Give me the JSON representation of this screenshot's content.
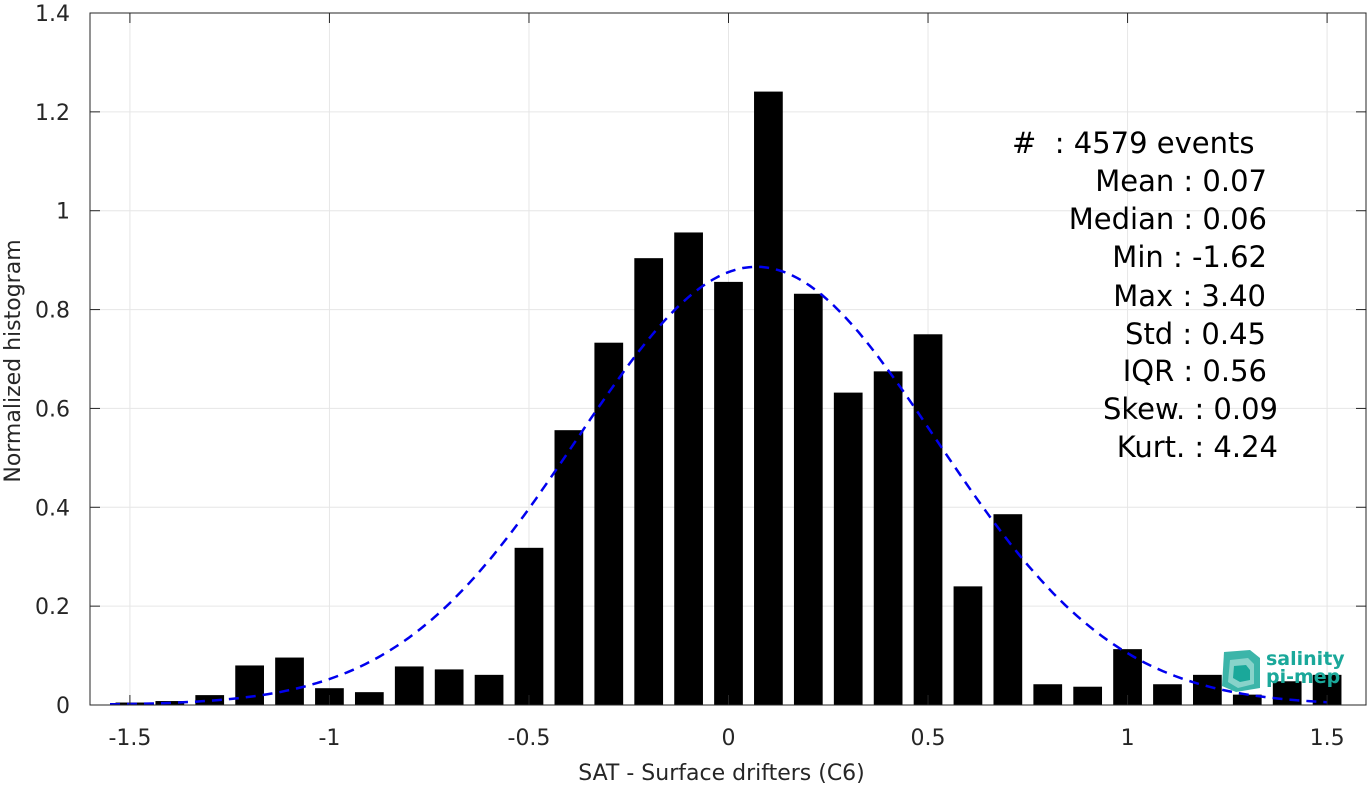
{
  "chart_data": {
    "type": "bar",
    "xlabel": "SAT - Surface drifters (C6)",
    "ylabel": "Normalized histogram",
    "xlim": [
      -1.6,
      1.6
    ],
    "ylim": [
      0,
      1.4
    ],
    "xticks": [
      "-1.5",
      "-1",
      "-0.5",
      "0",
      "0.5",
      "1",
      "1.5"
    ],
    "xtick_values": [
      -1.5,
      -1,
      -0.5,
      0,
      0.5,
      1,
      1.5
    ],
    "yticks": [
      "0",
      "0.2",
      "0.4",
      "0.6",
      "0.8",
      "1",
      "1.2",
      "1.4"
    ],
    "ytick_values": [
      0,
      0.2,
      0.4,
      0.6,
      0.8,
      1,
      1.2,
      1.4
    ],
    "grid": true,
    "bar_color": "#000000",
    "bin_width": 0.1,
    "bars": {
      "x": [
        -1.5,
        -1.4,
        -1.3,
        -1.2,
        -1.1,
        -1.0,
        -0.9,
        -0.8,
        -0.7,
        -0.6,
        -0.5,
        -0.4,
        -0.3,
        -0.2,
        -0.1,
        0.0,
        0.1,
        0.2,
        0.3,
        0.4,
        0.5,
        0.6,
        0.7,
        0.8,
        0.9,
        1.0,
        1.1,
        1.2,
        1.3,
        1.4,
        1.5
      ],
      "values": [
        0.005,
        0.008,
        0.02,
        0.08,
        0.096,
        0.034,
        0.026,
        0.078,
        0.072,
        0.061,
        0.318,
        0.556,
        0.733,
        0.904,
        0.956,
        0.856,
        1.241,
        0.832,
        0.632,
        0.675,
        0.75,
        0.24,
        0.386,
        0.042,
        0.037,
        0.113,
        0.042,
        0.061,
        0.021,
        0.048,
        0.061
      ]
    },
    "fit_curve": {
      "style": "dashed",
      "color": "#0000ee",
      "mean": 0.07,
      "std": 0.45,
      "x_range": [
        -1.55,
        1.5
      ]
    }
  },
  "stats": {
    "events": "#  : 4579 events",
    "mean": "Mean : 0.07",
    "median": "Median : 0.06",
    "min": "Min : -1.62",
    "max": "Max : 3.40",
    "std": "Std : 0.45",
    "iqr": "IQR : 0.56",
    "skew": "Skew. : 0.09",
    "kurt": "Kurt. : 4.24"
  },
  "logo": {
    "line1": "salinity",
    "line2": "pi-mep",
    "color": "#1aa89a"
  }
}
